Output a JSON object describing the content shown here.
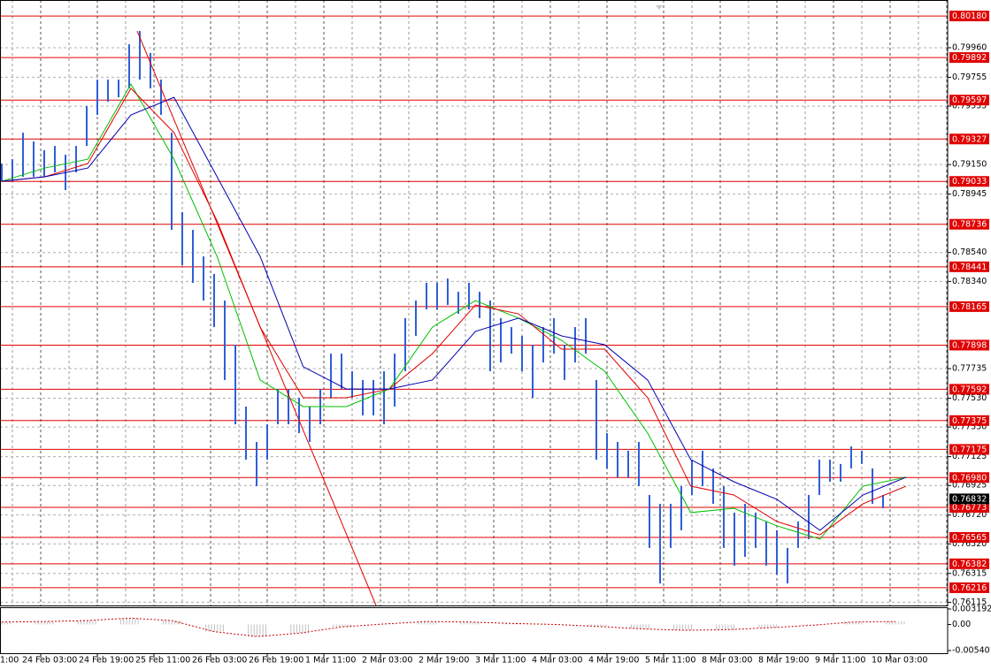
{
  "chart_data": {
    "type": "ohlc",
    "categories": [
      "1:00",
      "24 Feb 03:00",
      "24 Feb 19:00",
      "25 Feb 11:00",
      "26 Feb 03:00",
      "26 Feb 19:00",
      "1 Mar 11:00",
      "2 Mar 03:00",
      "2 Mar 19:00",
      "3 Mar 11:00",
      "4 Mar 03:00",
      "4 Mar 19:00",
      "5 Mar 11:00",
      "8 Mar 03:00",
      "8 Mar 19:00",
      "9 Mar 11:00",
      "10 Mar 03:00"
    ],
    "high": [
      0.79157,
      0.79187,
      0.79371,
      0.7931,
      0.79249,
      0.79279,
      0.79218,
      0.79279,
      0.79555,
      0.79739,
      0.79739,
      0.79739,
      0.79984,
      0.80076,
      0.79923,
      0.79739,
      0.79371,
      0.7882,
      0.78697,
      0.78513,
      0.78391,
      0.78207,
      0.77901,
      0.77472,
      0.77227,
      0.77349,
      0.77594,
      0.77594,
      0.77533,
      0.77472,
      0.77594,
      0.77839,
      0.77839,
      0.77717,
      0.77656,
      0.77656,
      0.77717,
      0.77839,
      0.78085,
      0.78207,
      0.7833,
      0.7833,
      0.7836,
      0.78268,
      0.7833,
      0.78268,
      0.78207,
      0.78085,
      0.78023,
      0.77962,
      0.77901,
      0.78023,
      0.78085,
      0.77901,
      0.78023,
      0.78085,
      0.77656,
      0.77288,
      0.77227,
      0.77166,
      0.77227,
      0.76859,
      0.76798,
      0.76798,
      0.7692,
      0.77104,
      0.77166,
      0.77043,
      0.7692,
      0.76737,
      0.76798,
      0.76737,
      0.76675,
      0.76614,
      0.76492,
      0.76675,
      0.76859,
      0.77104,
      0.77104,
      0.77074,
      0.77196,
      0.77166,
      0.77043,
      0.76859
    ],
    "low": [
      0.79034,
      0.79034,
      0.79065,
      0.79065,
      0.79065,
      0.79096,
      0.78973,
      0.79096,
      0.79279,
      0.79494,
      0.79586,
      0.79616,
      0.79678,
      0.79739,
      0.79678,
      0.79494,
      0.78697,
      0.78452,
      0.7833,
      0.78207,
      0.78023,
      0.77656,
      0.77349,
      0.77104,
      0.7692,
      0.77104,
      0.77349,
      0.77349,
      0.77288,
      0.77227,
      0.77349,
      0.77533,
      0.77594,
      0.77533,
      0.77411,
      0.77411,
      0.77349,
      0.77472,
      0.77717,
      0.77962,
      0.78146,
      0.78146,
      0.78176,
      0.78115,
      0.78146,
      0.78085,
      0.77717,
      0.77778,
      0.77839,
      0.77717,
      0.77533,
      0.77778,
      0.77839,
      0.77656,
      0.77778,
      0.77839,
      0.77104,
      0.77043,
      0.76982,
      0.76982,
      0.7692,
      0.76492,
      0.76246,
      0.76492,
      0.76614,
      0.76859,
      0.7692,
      0.76798,
      0.76492,
      0.76369,
      0.7643,
      0.76492,
      0.76369,
      0.76308,
      0.76246,
      0.76492,
      0.76553,
      0.76859,
      0.76951,
      0.76951,
      0.77043,
      0.77074,
      0.76798,
      0.76767
    ],
    "bar_color": "#2f5fd8",
    "moving_averages": [
      {
        "color": "#00c000",
        "values": [
          0.79034,
          0.79126,
          0.79187,
          0.79708,
          0.79187,
          0.78513,
          0.77656,
          0.77472,
          0.77472,
          0.77594,
          0.78023,
          0.78207,
          0.78085,
          0.77931,
          0.77717,
          0.77288,
          0.76737,
          0.76767,
          0.76645,
          0.76553,
          0.7692,
          0.76982
        ]
      },
      {
        "color": "#e00000",
        "values": [
          0.79034,
          0.79065,
          0.79157,
          0.79678,
          0.79371,
          0.78759,
          0.78023,
          0.77533,
          0.77533,
          0.77594,
          0.77839,
          0.78176,
          0.78115,
          0.7787,
          0.7787,
          0.77533,
          0.7692,
          0.76859,
          0.76675,
          0.76583,
          0.76798,
          0.7692
        ]
      },
      {
        "color": "#0000b0",
        "values": [
          0.79034,
          0.79065,
          0.79126,
          0.79494,
          0.79616,
          0.79065,
          0.78513,
          0.77748,
          0.77594,
          0.77594,
          0.77656,
          0.77993,
          0.78085,
          0.77962,
          0.77901,
          0.77656,
          0.77104,
          0.76951,
          0.76829,
          0.76614,
          0.76859,
          0.76982
        ]
      }
    ],
    "trendline": {
      "color": "#e00000",
      "values": [
        0.80076,
        0.76093
      ]
    },
    "levels": {
      "color": "#e00000",
      "values": [
        {
          "value": 0.8018,
          "label": "0.80180"
        },
        0.79892,
        0.79597,
        0.79327,
        0.79033,
        0.78736,
        0.78441,
        0.78165,
        0.77898,
        0.77592,
        0.77375,
        0.77175,
        {
          "value": 0.7698,
          "label": "0.76980"
        },
        0.76773,
        0.76565,
        0.76382,
        0.76216
      ]
    },
    "current_price": {
      "value": 0.76832,
      "color": "#000000"
    },
    "ylim": [
      0.76093,
      0.80254
    ],
    "yticks": [
      {
        "value": 0.7996,
        "label": "0.79960"
      },
      0.79755,
      0.79555,
      {
        "value": 0.7915,
        "label": "0.79150"
      },
      0.78945,
      {
        "value": 0.7854,
        "label": "0.78540"
      },
      {
        "value": 0.7834,
        "label": "0.78340"
      },
      0.77735,
      {
        "value": 0.7753,
        "label": "0.77530"
      },
      {
        "value": 0.7733,
        "label": "0.77330"
      },
      0.77125,
      0.76925,
      {
        "value": 0.7672,
        "label": "0.76720"
      },
      {
        "value": 0.7652,
        "label": "0.76520"
      },
      0.76315,
      0.76115
    ],
    "grid": true,
    "indicator": {
      "ylim": [
        -0.005401,
        0.003192
      ],
      "yticks": [
        0.003192,
        {
          "value": 0,
          "label": "0.00"
        },
        -0.005401
      ],
      "values": [
        0.0005,
        0.0006,
        0.0008,
        0.0013,
        0.0008,
        -0.0015,
        -0.0025,
        -0.0018,
        -0.0005,
        0.0001,
        0.0006,
        0.0005,
        0.0002,
        0.0,
        -0.0004,
        -0.0009,
        -0.0012,
        -0.0011,
        -0.0007,
        -0.0002,
        0.0005,
        0.0006
      ],
      "line_color": "#cc0000",
      "hist_color": "#c0c0c0"
    }
  }
}
